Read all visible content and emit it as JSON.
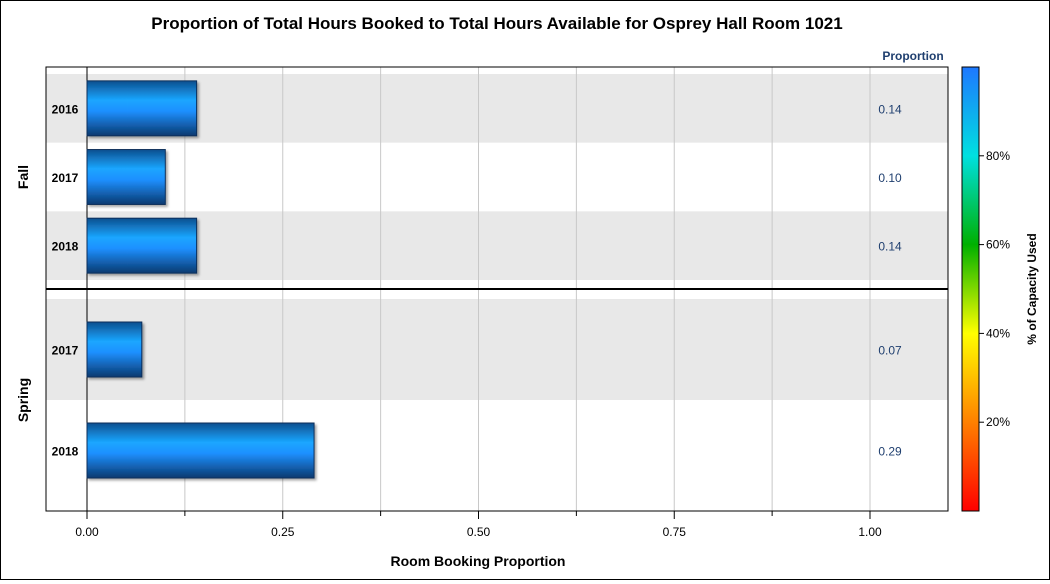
{
  "chart_data": {
    "type": "bar",
    "orientation": "horizontal",
    "title": "Proportion of Total Hours Booked to Total Hours Available for Osprey Hall Room 1021",
    "xlabel": "Room Booking Proportion",
    "value_column_header": "Proportion",
    "xlim": [
      0,
      1.1
    ],
    "xticks": [
      "0.00",
      "0.25",
      "0.50",
      "0.75",
      "1.00"
    ],
    "xtick_values": [
      0,
      0.25,
      0.5,
      0.75,
      1.0
    ],
    "grid": true,
    "groups": [
      {
        "name": "Fall",
        "rows": [
          {
            "category": "2016",
            "value": 0.14,
            "label": "0.14"
          },
          {
            "category": "2017",
            "value": 0.1,
            "label": "0.10"
          },
          {
            "category": "2018",
            "value": 0.14,
            "label": "0.14"
          }
        ]
      },
      {
        "name": "Spring",
        "rows": [
          {
            "category": "2017",
            "value": 0.07,
            "label": "0.07"
          },
          {
            "category": "2018",
            "value": 0.29,
            "label": "0.29"
          }
        ]
      }
    ],
    "colorbar": {
      "title": "% of Capacity Used",
      "ticks": [
        "20%",
        "40%",
        "60%",
        "80%"
      ],
      "tick_values": [
        20,
        40,
        60,
        80
      ],
      "range": [
        0,
        100
      ],
      "colors": [
        "#ff0000",
        "#ff8000",
        "#ffff00",
        "#00b000",
        "#00e0e0",
        "#1e78ff"
      ]
    },
    "bar_color": "#1a8cff",
    "band_color": "#e8e8e8",
    "label_color": "#1f3f6f"
  }
}
